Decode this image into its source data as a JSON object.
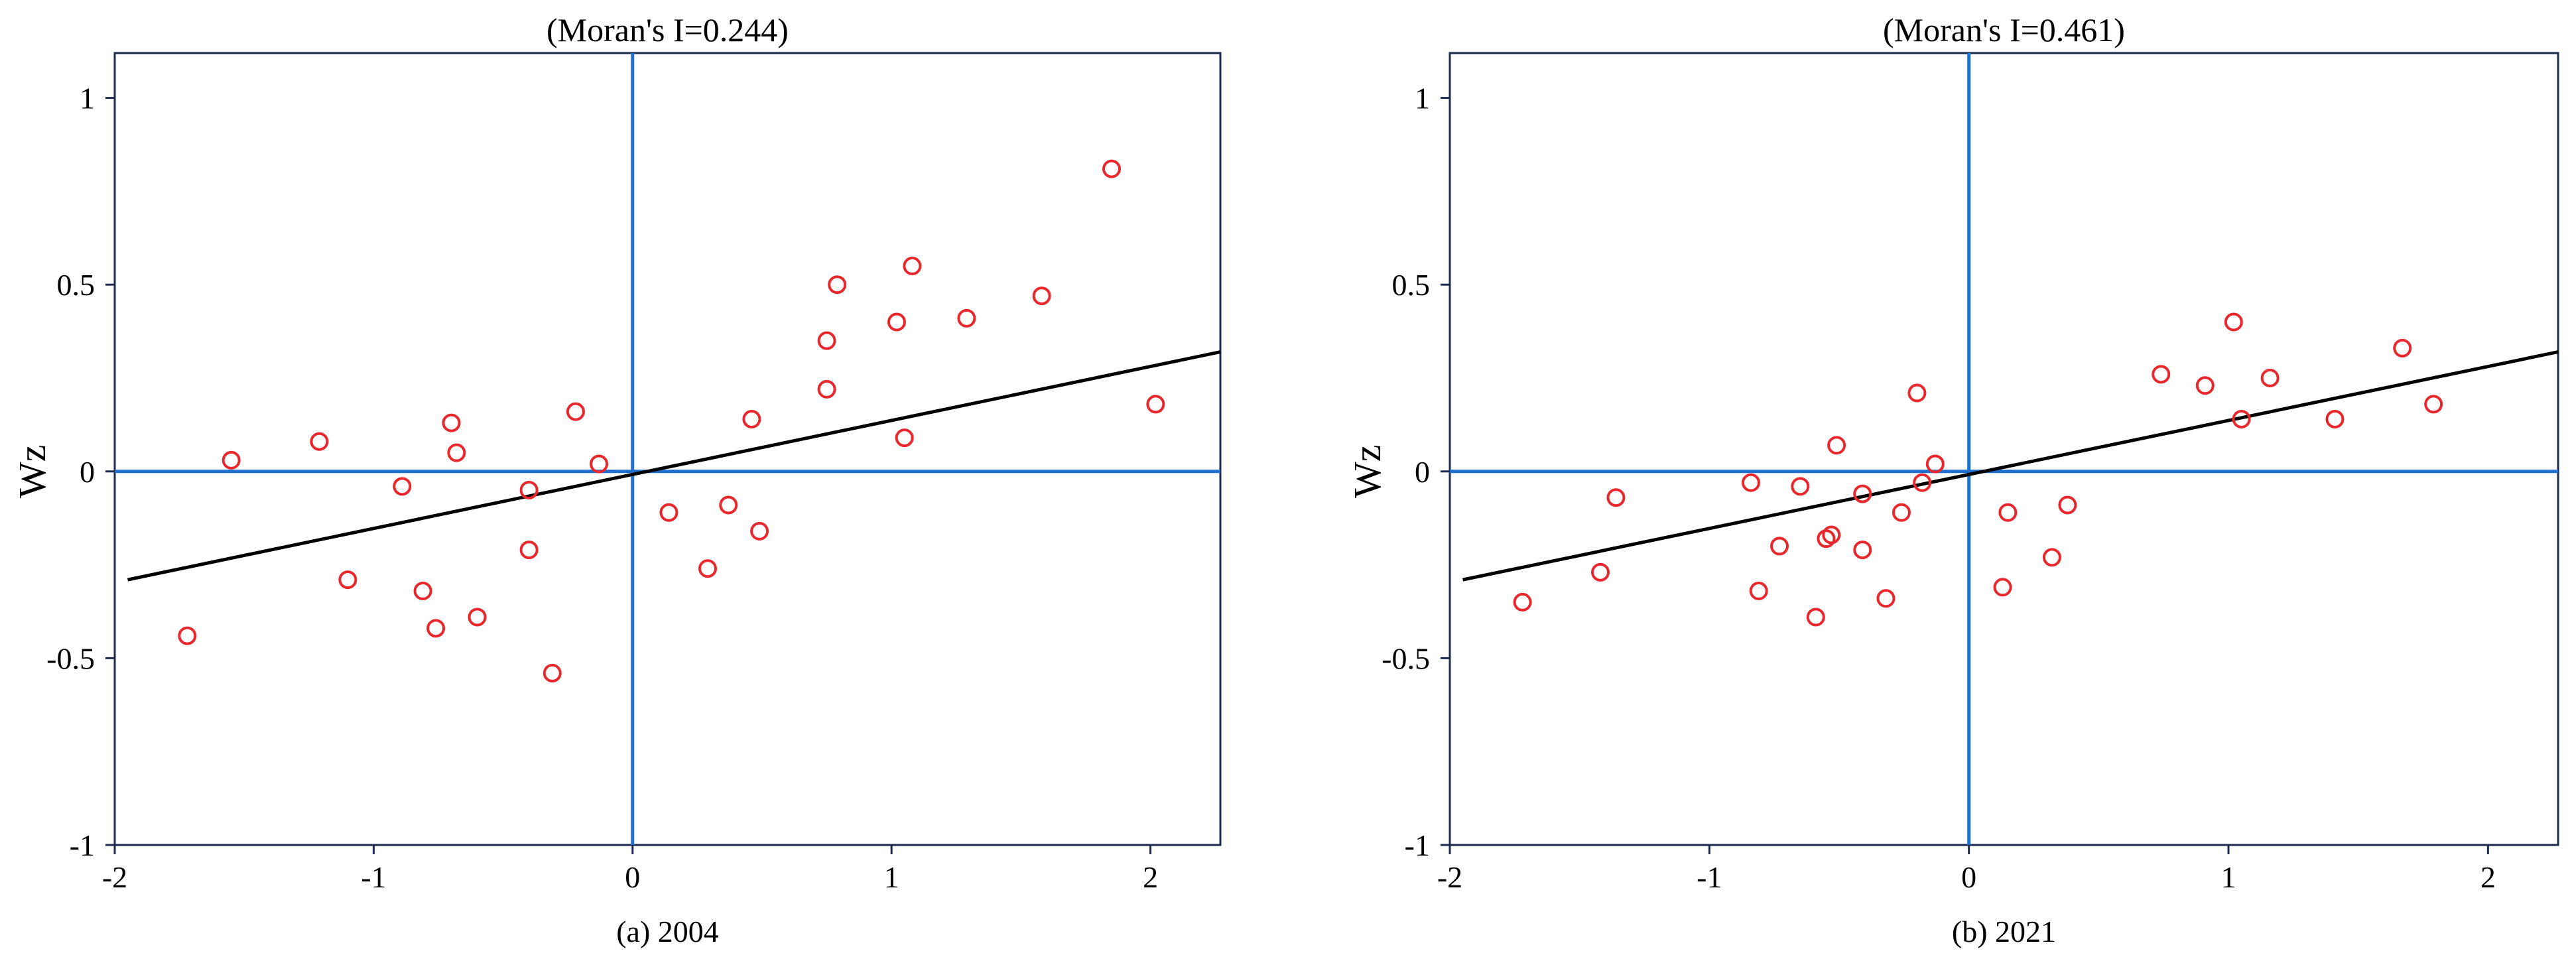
{
  "chart_data": [
    {
      "type": "scatter",
      "title": "(Moran's I=0.244)",
      "caption": "(a)  2004",
      "ylabel": "Wz",
      "xlabel": "",
      "xlim": [
        -2,
        2.27
      ],
      "ylim": [
        -1,
        1.12
      ],
      "xticks": [
        -2,
        -1,
        0,
        1,
        2
      ],
      "xtick_labels": [
        "-2",
        "-1",
        "0",
        "1",
        "2"
      ],
      "yticks": [
        -1,
        -0.5,
        0,
        0.5,
        1
      ],
      "ytick_labels": [
        "-1",
        "-0.5",
        "0",
        "0.5",
        "1"
      ],
      "grid": false,
      "marker_color": "#e8282c",
      "axis_line_color": "#1f6fd1",
      "fit_line_color": "#000000",
      "fit_line": {
        "x": [
          -1.95,
          2.27
        ],
        "y": [
          -0.29,
          0.32
        ]
      },
      "points": [
        {
          "x": -1.72,
          "y": -0.44
        },
        {
          "x": -1.55,
          "y": 0.03
        },
        {
          "x": -1.21,
          "y": 0.08
        },
        {
          "x": -1.1,
          "y": -0.29
        },
        {
          "x": -0.89,
          "y": -0.04
        },
        {
          "x": -0.81,
          "y": -0.32
        },
        {
          "x": -0.76,
          "y": -0.42
        },
        {
          "x": -0.7,
          "y": 0.13
        },
        {
          "x": -0.68,
          "y": 0.05
        },
        {
          "x": -0.6,
          "y": -0.39
        },
        {
          "x": -0.4,
          "y": -0.05
        },
        {
          "x": -0.4,
          "y": -0.21
        },
        {
          "x": -0.31,
          "y": -0.54
        },
        {
          "x": -0.22,
          "y": 0.16
        },
        {
          "x": -0.13,
          "y": 0.02
        },
        {
          "x": 0.14,
          "y": -0.11
        },
        {
          "x": 0.29,
          "y": -0.26
        },
        {
          "x": 0.37,
          "y": -0.09
        },
        {
          "x": 0.46,
          "y": 0.14
        },
        {
          "x": 0.49,
          "y": -0.16
        },
        {
          "x": 0.75,
          "y": 0.35
        },
        {
          "x": 0.75,
          "y": 0.22
        },
        {
          "x": 0.79,
          "y": 0.5
        },
        {
          "x": 1.02,
          "y": 0.4
        },
        {
          "x": 1.05,
          "y": 0.09
        },
        {
          "x": 1.08,
          "y": 0.55
        },
        {
          "x": 1.29,
          "y": 0.41
        },
        {
          "x": 1.58,
          "y": 0.47
        },
        {
          "x": 1.85,
          "y": 0.81
        },
        {
          "x": 2.02,
          "y": 0.18
        }
      ]
    },
    {
      "type": "scatter",
      "title": "(Moran's I=0.461)",
      "caption": "(b)  2021",
      "ylabel": "Wz",
      "xlabel": "",
      "xlim": [
        -2,
        2.27
      ],
      "ylim": [
        -1,
        1.12
      ],
      "xticks": [
        -2,
        -1,
        0,
        1,
        2
      ],
      "xtick_labels": [
        "-2",
        "-1",
        "0",
        "1",
        "2"
      ],
      "yticks": [
        -1,
        -0.5,
        0,
        0.5,
        1
      ],
      "ytick_labels": [
        "-1",
        "-0.5",
        "0",
        "0.5",
        "1"
      ],
      "grid": false,
      "marker_color": "#e8282c",
      "axis_line_color": "#1f6fd1",
      "fit_line_color": "#000000",
      "fit_line": {
        "x": [
          -1.95,
          2.27
        ],
        "y": [
          -0.29,
          0.32
        ]
      },
      "points": [
        {
          "x": -1.72,
          "y": -0.35
        },
        {
          "x": -1.42,
          "y": -0.27
        },
        {
          "x": -1.36,
          "y": -0.07
        },
        {
          "x": -0.84,
          "y": -0.03
        },
        {
          "x": -0.81,
          "y": -0.32
        },
        {
          "x": -0.73,
          "y": -0.2
        },
        {
          "x": -0.65,
          "y": -0.04
        },
        {
          "x": -0.59,
          "y": -0.39
        },
        {
          "x": -0.55,
          "y": -0.18
        },
        {
          "x": -0.53,
          "y": -0.17
        },
        {
          "x": -0.51,
          "y": 0.07
        },
        {
          "x": -0.41,
          "y": -0.06
        },
        {
          "x": -0.41,
          "y": -0.21
        },
        {
          "x": -0.32,
          "y": -0.34
        },
        {
          "x": -0.26,
          "y": -0.11
        },
        {
          "x": -0.2,
          "y": 0.21
        },
        {
          "x": -0.18,
          "y": -0.03
        },
        {
          "x": -0.13,
          "y": 0.02
        },
        {
          "x": 0.13,
          "y": -0.31
        },
        {
          "x": 0.15,
          "y": -0.11
        },
        {
          "x": 0.32,
          "y": -0.23
        },
        {
          "x": 0.38,
          "y": -0.09
        },
        {
          "x": 0.74,
          "y": 0.26
        },
        {
          "x": 0.91,
          "y": 0.23
        },
        {
          "x": 1.02,
          "y": 0.4
        },
        {
          "x": 1.05,
          "y": 0.14
        },
        {
          "x": 1.16,
          "y": 0.25
        },
        {
          "x": 1.41,
          "y": 0.14
        },
        {
          "x": 1.67,
          "y": 0.33
        },
        {
          "x": 1.79,
          "y": 0.18
        }
      ]
    }
  ]
}
